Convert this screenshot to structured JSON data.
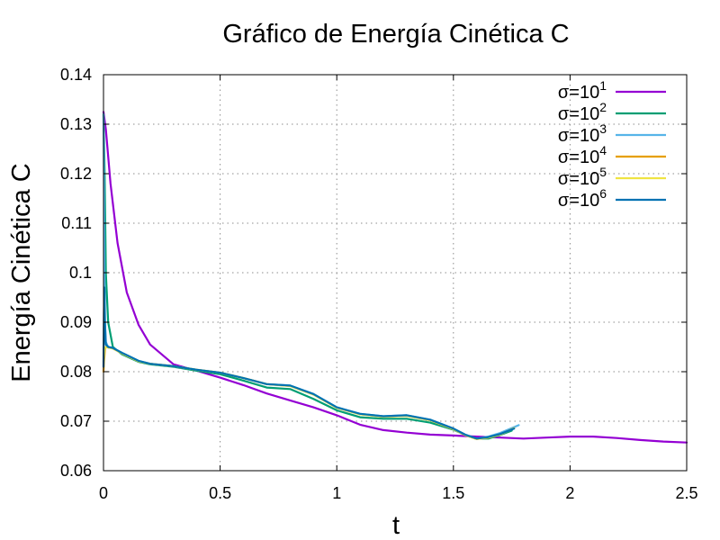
{
  "chart_data": {
    "type": "line",
    "title": "Gráfico de Energía Cinética C",
    "xlabel": "t",
    "ylabel": "Energía Cinética C",
    "xlim": [
      0,
      2.5
    ],
    "ylim": [
      0.06,
      0.14
    ],
    "x_ticks": [
      "0",
      "0.5",
      "1",
      "1.5",
      "2",
      "2.5"
    ],
    "y_ticks": [
      "0.06",
      "0.07",
      "0.08",
      "0.09",
      "0.1",
      "0.11",
      "0.12",
      "0.13",
      "0.14"
    ],
    "grid": true,
    "legend_position": "top-right",
    "series": [
      {
        "name": "σ=10^1",
        "label_base": "σ=10",
        "label_exp": "1",
        "color": "#9400d3",
        "x": [
          0,
          0.01,
          0.03,
          0.06,
          0.1,
          0.15,
          0.2,
          0.3,
          0.4,
          0.5,
          0.6,
          0.7,
          0.8,
          0.9,
          1.0,
          1.1,
          1.2,
          1.3,
          1.4,
          1.5,
          1.6,
          1.7,
          1.8,
          1.9,
          2.0,
          2.1,
          2.2,
          2.3,
          2.4,
          2.5
        ],
        "y": [
          0.1325,
          0.129,
          0.118,
          0.106,
          0.096,
          0.0895,
          0.0855,
          0.0815,
          0.0802,
          0.0788,
          0.0773,
          0.0756,
          0.0742,
          0.0728,
          0.0712,
          0.0693,
          0.0682,
          0.0677,
          0.0673,
          0.0671,
          0.0669,
          0.0667,
          0.0665,
          0.0667,
          0.0669,
          0.0669,
          0.0666,
          0.0662,
          0.0659,
          0.0657
        ]
      },
      {
        "name": "σ=10^2",
        "label_base": "σ=10",
        "label_exp": "2",
        "color": "#009e73",
        "x": [
          0,
          0.005,
          0.01,
          0.02,
          0.04,
          0.08,
          0.15,
          0.2,
          0.3,
          0.4,
          0.5,
          0.6,
          0.7,
          0.8,
          0.9,
          1.0,
          1.1,
          1.2,
          1.3,
          1.4,
          1.5,
          1.55,
          1.6,
          1.65,
          1.7,
          1.75
        ],
        "y": [
          0.132,
          0.12,
          0.1,
          0.09,
          0.085,
          0.0835,
          0.082,
          0.0815,
          0.081,
          0.0802,
          0.0795,
          0.0782,
          0.0768,
          0.0765,
          0.0745,
          0.0722,
          0.0708,
          0.0705,
          0.0705,
          0.0697,
          0.0683,
          0.0672,
          0.0665,
          0.0665,
          0.0672,
          0.0681
        ]
      },
      {
        "name": "σ=10^3",
        "label_base": "σ=10",
        "label_exp": "3",
        "color": "#56b4e9",
        "x": [
          0,
          0.002,
          0.004,
          0.006,
          0.01,
          0.02,
          0.04,
          0.08,
          0.15,
          0.2,
          0.3,
          0.4,
          0.5,
          0.6,
          0.7,
          0.8,
          0.9,
          1.0,
          1.1,
          1.2,
          1.3,
          1.4,
          1.5,
          1.55,
          1.6,
          1.65,
          1.7,
          1.78
        ],
        "y": [
          0.132,
          0.12,
          0.1,
          0.09,
          0.086,
          0.085,
          0.0848,
          0.0838,
          0.0822,
          0.0816,
          0.0811,
          0.0804,
          0.0798,
          0.0787,
          0.0775,
          0.0772,
          0.0755,
          0.0728,
          0.0715,
          0.071,
          0.0712,
          0.0703,
          0.0685,
          0.0673,
          0.0665,
          0.0669,
          0.0676,
          0.0692
        ]
      },
      {
        "name": "σ=10^4",
        "label_base": "σ=10",
        "label_exp": "4",
        "color": "#e69f00",
        "x": [
          0,
          0.002,
          0.004,
          0.006,
          0.01,
          0.02,
          0.04,
          0.08,
          0.15,
          0.2,
          0.3,
          0.4,
          0.5,
          0.6,
          0.7,
          0.8,
          0.9,
          1.0,
          1.1,
          1.2,
          1.3,
          1.4,
          1.5,
          1.55,
          1.6,
          1.65,
          1.7,
          1.76
        ],
        "y": [
          0.08,
          0.082,
          0.083,
          0.0845,
          0.085,
          0.0849,
          0.0847,
          0.0837,
          0.0821,
          0.0816,
          0.0811,
          0.0804,
          0.0798,
          0.0787,
          0.0775,
          0.0771,
          0.0754,
          0.0727,
          0.0714,
          0.0709,
          0.0711,
          0.0702,
          0.0684,
          0.0672,
          0.0664,
          0.0667,
          0.0673,
          0.0686
        ]
      },
      {
        "name": "σ=10^5",
        "label_base": "σ=10",
        "label_exp": "5",
        "color": "#f0e442",
        "x": [
          0,
          0.004,
          0.01,
          0.02,
          0.04,
          0.08,
          0.15,
          0.2,
          0.3,
          0.4,
          0.5,
          0.6,
          0.7,
          0.8,
          0.9,
          1.0,
          1.1,
          1.2,
          1.3,
          1.4,
          1.5,
          1.55,
          1.6,
          1.65,
          1.7,
          1.76
        ],
        "y": [
          0.082,
          0.0845,
          0.085,
          0.0849,
          0.0847,
          0.0837,
          0.0821,
          0.0816,
          0.0811,
          0.0804,
          0.0798,
          0.0787,
          0.0775,
          0.0771,
          0.0754,
          0.0727,
          0.0714,
          0.0709,
          0.0711,
          0.0702,
          0.0684,
          0.0672,
          0.0664,
          0.0667,
          0.0673,
          0.0686
        ]
      },
      {
        "name": "σ=10^6",
        "label_base": "σ=10",
        "label_exp": "6",
        "color": "#0072b2",
        "x": [
          0,
          0.002,
          0.004,
          0.006,
          0.01,
          0.02,
          0.04,
          0.08,
          0.15,
          0.2,
          0.3,
          0.4,
          0.5,
          0.6,
          0.7,
          0.8,
          0.9,
          1.0,
          1.1,
          1.2,
          1.3,
          1.4,
          1.5,
          1.55,
          1.6,
          1.65,
          1.7,
          1.76
        ],
        "y": [
          0.081,
          0.092,
          0.097,
          0.09,
          0.0855,
          0.085,
          0.0848,
          0.0838,
          0.0822,
          0.0816,
          0.0811,
          0.0804,
          0.0798,
          0.0787,
          0.0775,
          0.0772,
          0.0755,
          0.0728,
          0.0715,
          0.071,
          0.0712,
          0.0703,
          0.0685,
          0.0673,
          0.0665,
          0.0668,
          0.0674,
          0.0685
        ]
      }
    ]
  }
}
